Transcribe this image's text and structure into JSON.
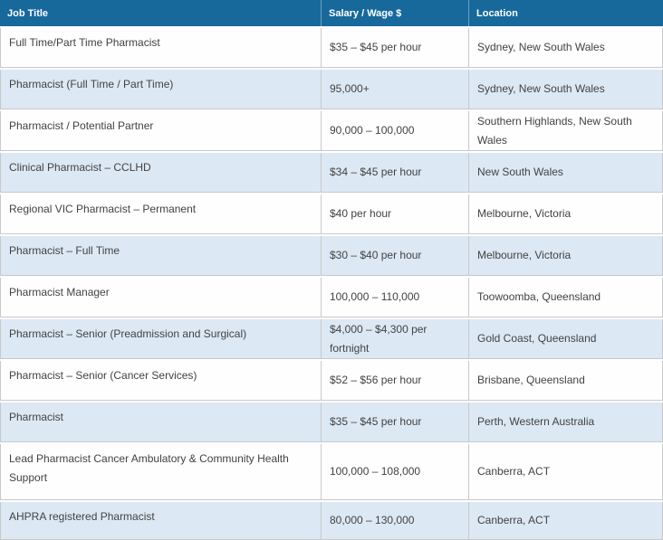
{
  "chart_data": {
    "type": "table",
    "columns": [
      "Job Title",
      "Salary / Wage $",
      "Location"
    ],
    "rows": [
      [
        "Full Time/Part Time Pharmacist",
        "$35 – $45 per hour",
        "Sydney, New South Wales"
      ],
      [
        "Pharmacist (Full Time / Part Time)",
        "95,000+",
        "Sydney, New South Wales"
      ],
      [
        "Pharmacist / Potential Partner",
        "90,000 – 100,000",
        "Southern Highlands, New South Wales"
      ],
      [
        "Clinical Pharmacist – CCLHD",
        "$34 – $45 per hour",
        "New South Wales"
      ],
      [
        "Regional VIC Pharmacist – Permanent",
        "$40 per hour",
        "Melbourne, Victoria"
      ],
      [
        "Pharmacist – Full Time",
        "$30 – $40 per hour",
        "Melbourne, Victoria"
      ],
      [
        "Pharmacist Manager",
        "100,000 – 110,000",
        "Toowoomba, Queensland"
      ],
      [
        "Pharmacist – Senior (Preadmission and Surgical)",
        "$4,000 – $4,300 per fortnight",
        "Gold Coast, Queensland"
      ],
      [
        "Pharmacist – Senior (Cancer Services)",
        "$52 – $56 per hour",
        "Brisbane, Queensland"
      ],
      [
        "Pharmacist",
        "$35 – $45 per hour",
        "Perth, Western Australia"
      ],
      [
        "Lead Pharmacist Cancer Ambulatory & Community Health Support",
        "100,000 – 108,000",
        "Canberra, ACT"
      ],
      [
        "AHPRA registered Pharmacist",
        "80,000 – 130,000",
        "Canberra, ACT"
      ]
    ],
    "layout": {
      "grid": "bordered-rows",
      "row_striping": "white / light-blue alternating",
      "header_position": "top"
    }
  },
  "colors": {
    "header_bg": "#17699c",
    "header_text": "#ffffff",
    "alt_row_bg": "#dce8f4",
    "row_bg": "#fefefe",
    "border": "#c9c9c9",
    "body_text": "#424242"
  }
}
